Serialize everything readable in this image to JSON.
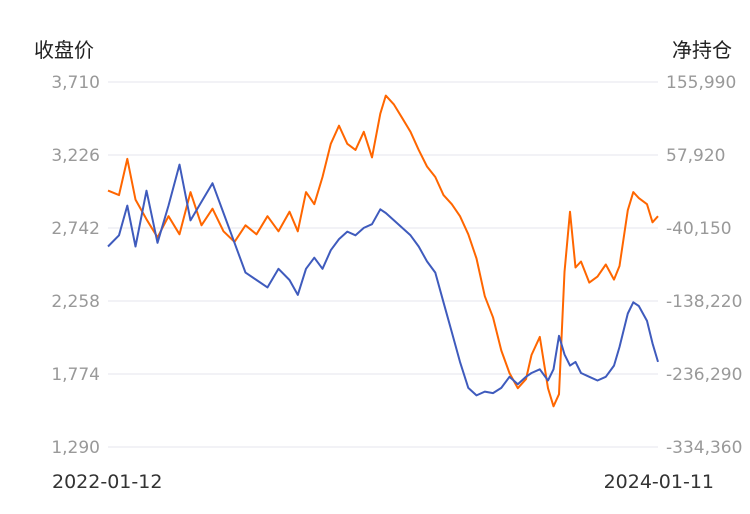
{
  "chart_data": {
    "type": "line",
    "y_left_label": "收盘价",
    "y_right_label": "净持仓",
    "x_labels": [
      "2022-01-12",
      "2024-01-11"
    ],
    "y_left_ticks": [
      "3,710",
      "3,226",
      "2,742",
      "2,258",
      "1,774",
      "1,290"
    ],
    "y_right_ticks": [
      "155,990",
      "57,920",
      "-40,150",
      "-138,220",
      "-236,290",
      "-334,360"
    ],
    "y_left_range": [
      1290,
      3710
    ],
    "y_right_range": [
      -334360,
      155990
    ],
    "x_range": [
      "2022-01-12",
      "2024-01-11"
    ],
    "grid": true,
    "series": [
      {
        "axis": "left",
        "color": "#ff6600",
        "values": [
          [
            0,
            2990
          ],
          [
            0.02,
            2960
          ],
          [
            0.035,
            3200
          ],
          [
            0.05,
            2930
          ],
          [
            0.07,
            2800
          ],
          [
            0.09,
            2680
          ],
          [
            0.11,
            2820
          ],
          [
            0.13,
            2700
          ],
          [
            0.15,
            2980
          ],
          [
            0.17,
            2760
          ],
          [
            0.19,
            2870
          ],
          [
            0.21,
            2720
          ],
          [
            0.23,
            2650
          ],
          [
            0.25,
            2760
          ],
          [
            0.27,
            2700
          ],
          [
            0.29,
            2820
          ],
          [
            0.31,
            2720
          ],
          [
            0.33,
            2850
          ],
          [
            0.345,
            2720
          ],
          [
            0.36,
            2980
          ],
          [
            0.375,
            2900
          ],
          [
            0.39,
            3080
          ],
          [
            0.405,
            3300
          ],
          [
            0.42,
            3420
          ],
          [
            0.435,
            3300
          ],
          [
            0.45,
            3260
          ],
          [
            0.465,
            3380
          ],
          [
            0.48,
            3210
          ],
          [
            0.495,
            3500
          ],
          [
            0.505,
            3620
          ],
          [
            0.52,
            3560
          ],
          [
            0.535,
            3470
          ],
          [
            0.55,
            3380
          ],
          [
            0.565,
            3260
          ],
          [
            0.58,
            3150
          ],
          [
            0.595,
            3080
          ],
          [
            0.61,
            2960
          ],
          [
            0.625,
            2900
          ],
          [
            0.64,
            2820
          ],
          [
            0.655,
            2700
          ],
          [
            0.67,
            2540
          ],
          [
            0.685,
            2290
          ],
          [
            0.7,
            2150
          ],
          [
            0.715,
            1930
          ],
          [
            0.73,
            1780
          ],
          [
            0.745,
            1680
          ],
          [
            0.76,
            1740
          ],
          [
            0.77,
            1900
          ],
          [
            0.785,
            2020
          ],
          [
            0.8,
            1680
          ],
          [
            0.81,
            1560
          ],
          [
            0.82,
            1640
          ],
          [
            0.83,
            2450
          ],
          [
            0.84,
            2850
          ],
          [
            0.85,
            2480
          ],
          [
            0.86,
            2520
          ],
          [
            0.875,
            2380
          ],
          [
            0.89,
            2420
          ],
          [
            0.905,
            2500
          ],
          [
            0.92,
            2400
          ],
          [
            0.93,
            2490
          ],
          [
            0.945,
            2860
          ],
          [
            0.955,
            2980
          ],
          [
            0.965,
            2940
          ],
          [
            0.98,
            2900
          ],
          [
            0.99,
            2780
          ],
          [
            1.0,
            2820
          ]
        ]
      },
      {
        "axis": "right",
        "color": "#3f5bbd",
        "values": [
          [
            0,
            -65000
          ],
          [
            0.02,
            -50000
          ],
          [
            0.035,
            -10000
          ],
          [
            0.05,
            -65000
          ],
          [
            0.07,
            10000
          ],
          [
            0.09,
            -60000
          ],
          [
            0.11,
            -10000
          ],
          [
            0.13,
            45000
          ],
          [
            0.15,
            -30000
          ],
          [
            0.17,
            -5000
          ],
          [
            0.19,
            20000
          ],
          [
            0.21,
            -20000
          ],
          [
            0.23,
            -60000
          ],
          [
            0.25,
            -100000
          ],
          [
            0.27,
            -110000
          ],
          [
            0.29,
            -120000
          ],
          [
            0.31,
            -95000
          ],
          [
            0.33,
            -110000
          ],
          [
            0.345,
            -130000
          ],
          [
            0.36,
            -95000
          ],
          [
            0.375,
            -80000
          ],
          [
            0.39,
            -95000
          ],
          [
            0.405,
            -70000
          ],
          [
            0.42,
            -55000
          ],
          [
            0.435,
            -45000
          ],
          [
            0.45,
            -50000
          ],
          [
            0.465,
            -40000
          ],
          [
            0.48,
            -35000
          ],
          [
            0.495,
            -15000
          ],
          [
            0.505,
            -20000
          ],
          [
            0.52,
            -30000
          ],
          [
            0.535,
            -40000
          ],
          [
            0.55,
            -50000
          ],
          [
            0.565,
            -65000
          ],
          [
            0.58,
            -85000
          ],
          [
            0.595,
            -100000
          ],
          [
            0.61,
            -140000
          ],
          [
            0.625,
            -180000
          ],
          [
            0.64,
            -220000
          ],
          [
            0.655,
            -255000
          ],
          [
            0.67,
            -265000
          ],
          [
            0.685,
            -260000
          ],
          [
            0.7,
            -262000
          ],
          [
            0.715,
            -255000
          ],
          [
            0.73,
            -240000
          ],
          [
            0.745,
            -250000
          ],
          [
            0.76,
            -240000
          ],
          [
            0.77,
            -235000
          ],
          [
            0.785,
            -230000
          ],
          [
            0.8,
            -245000
          ],
          [
            0.81,
            -230000
          ],
          [
            0.82,
            -185000
          ],
          [
            0.83,
            -210000
          ],
          [
            0.84,
            -225000
          ],
          [
            0.85,
            -220000
          ],
          [
            0.86,
            -235000
          ],
          [
            0.875,
            -240000
          ],
          [
            0.89,
            -245000
          ],
          [
            0.905,
            -240000
          ],
          [
            0.92,
            -225000
          ],
          [
            0.93,
            -200000
          ],
          [
            0.945,
            -155000
          ],
          [
            0.955,
            -140000
          ],
          [
            0.965,
            -145000
          ],
          [
            0.98,
            -165000
          ],
          [
            0.99,
            -195000
          ],
          [
            1.0,
            -220000
          ]
        ]
      }
    ]
  }
}
